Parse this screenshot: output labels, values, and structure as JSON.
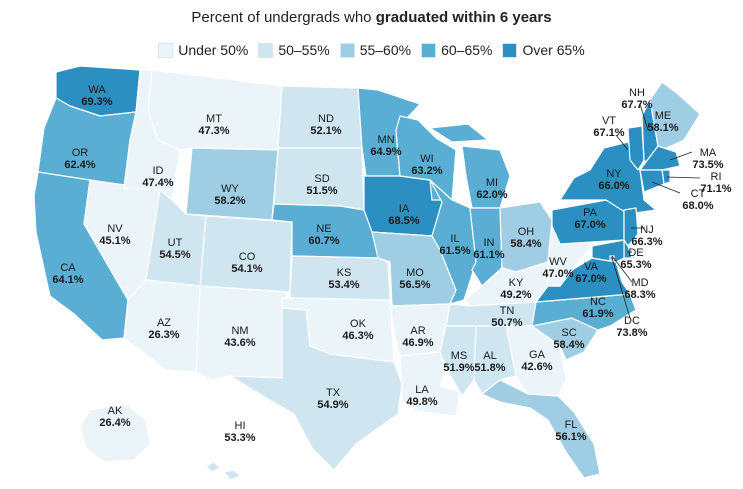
{
  "title": {
    "prefix": "Percent of undergrads who ",
    "bold": "graduated within 6 years"
  },
  "legend": [
    {
      "label": "Under 50%",
      "color": "#eaf4f9"
    },
    {
      "label": "50–55%",
      "color": "#cfe6f1"
    },
    {
      "label": "55–60%",
      "color": "#9fcde3"
    },
    {
      "label": "60–65%",
      "color": "#5aaed3"
    },
    {
      "label": "Over 65%",
      "color": "#2b8fc1"
    }
  ],
  "states": [
    {
      "abbr": "WA",
      "value": "69.3%",
      "color": "#2b8fc1"
    },
    {
      "abbr": "OR",
      "value": "62.4%",
      "color": "#5aaed3"
    },
    {
      "abbr": "CA",
      "value": "64.1%",
      "color": "#5aaed3"
    },
    {
      "abbr": "NV",
      "value": "45.1%",
      "color": "#eaf4f9"
    },
    {
      "abbr": "ID",
      "value": "47.4%",
      "color": "#eaf4f9"
    },
    {
      "abbr": "MT",
      "value": "47.3%",
      "color": "#eaf4f9"
    },
    {
      "abbr": "WY",
      "value": "58.2%",
      "color": "#9fcde3"
    },
    {
      "abbr": "UT",
      "value": "54.5%",
      "color": "#cfe6f1"
    },
    {
      "abbr": "AZ",
      "value": "26.3%",
      "color": "#eaf4f9"
    },
    {
      "abbr": "CO",
      "value": "54.1%",
      "color": "#cfe6f1"
    },
    {
      "abbr": "NM",
      "value": "43.6%",
      "color": "#eaf4f9"
    },
    {
      "abbr": "ND",
      "value": "52.1%",
      "color": "#cfe6f1"
    },
    {
      "abbr": "SD",
      "value": "51.5%",
      "color": "#cfe6f1"
    },
    {
      "abbr": "NE",
      "value": "60.7%",
      "color": "#5aaed3"
    },
    {
      "abbr": "KS",
      "value": "53.4%",
      "color": "#cfe6f1"
    },
    {
      "abbr": "OK",
      "value": "46.3%",
      "color": "#eaf4f9"
    },
    {
      "abbr": "TX",
      "value": "54.9%",
      "color": "#cfe6f1"
    },
    {
      "abbr": "MN",
      "value": "64.9%",
      "color": "#5aaed3"
    },
    {
      "abbr": "IA",
      "value": "68.5%",
      "color": "#2b8fc1"
    },
    {
      "abbr": "MO",
      "value": "56.5%",
      "color": "#9fcde3"
    },
    {
      "abbr": "AR",
      "value": "46.9%",
      "color": "#eaf4f9"
    },
    {
      "abbr": "LA",
      "value": "49.8%",
      "color": "#eaf4f9"
    },
    {
      "abbr": "WI",
      "value": "63.2%",
      "color": "#5aaed3"
    },
    {
      "abbr": "IL",
      "value": "61.5%",
      "color": "#5aaed3"
    },
    {
      "abbr": "MI",
      "value": "62.0%",
      "color": "#5aaed3"
    },
    {
      "abbr": "IN",
      "value": "61.1%",
      "color": "#5aaed3"
    },
    {
      "abbr": "OH",
      "value": "58.4%",
      "color": "#9fcde3"
    },
    {
      "abbr": "KY",
      "value": "49.2%",
      "color": "#eaf4f9"
    },
    {
      "abbr": "TN",
      "value": "50.7%",
      "color": "#cfe6f1"
    },
    {
      "abbr": "MS",
      "value": "51.9%",
      "color": "#cfe6f1"
    },
    {
      "abbr": "AL",
      "value": "51.8%",
      "color": "#cfe6f1"
    },
    {
      "abbr": "GA",
      "value": "42.6%",
      "color": "#eaf4f9"
    },
    {
      "abbr": "FL",
      "value": "56.1%",
      "color": "#9fcde3"
    },
    {
      "abbr": "SC",
      "value": "58.4%",
      "color": "#9fcde3"
    },
    {
      "abbr": "NC",
      "value": "61.9%",
      "color": "#5aaed3"
    },
    {
      "abbr": "VA",
      "value": "67.0%",
      "color": "#2b8fc1"
    },
    {
      "abbr": "WV",
      "value": "47.0%",
      "color": "#eaf4f9"
    },
    {
      "abbr": "PA",
      "value": "67.0%",
      "color": "#2b8fc1"
    },
    {
      "abbr": "NY",
      "value": "66.0%",
      "color": "#2b8fc1"
    },
    {
      "abbr": "VT",
      "value": "67.1%",
      "color": "#2b8fc1"
    },
    {
      "abbr": "NH",
      "value": "67.7%",
      "color": "#2b8fc1"
    },
    {
      "abbr": "ME",
      "value": "58.1%",
      "color": "#9fcde3"
    },
    {
      "abbr": "MA",
      "value": "73.5%",
      "color": "#2b8fc1"
    },
    {
      "abbr": "RI",
      "value": "71.1%",
      "color": "#2b8fc1"
    },
    {
      "abbr": "CT",
      "value": "68.0%",
      "color": "#2b8fc1"
    },
    {
      "abbr": "NJ",
      "value": "66.3%",
      "color": "#2b8fc1"
    },
    {
      "abbr": "DE",
      "value": "65.3%",
      "color": "#2b8fc1"
    },
    {
      "abbr": "MD",
      "value": "68.3%",
      "color": "#2b8fc1"
    },
    {
      "abbr": "DC",
      "value": "73.8%",
      "color": "#2b8fc1"
    },
    {
      "abbr": "AK",
      "value": "26.4%",
      "color": "#eaf4f9"
    },
    {
      "abbr": "HI",
      "value": "53.3%",
      "color": "#cfe6f1"
    }
  ]
}
